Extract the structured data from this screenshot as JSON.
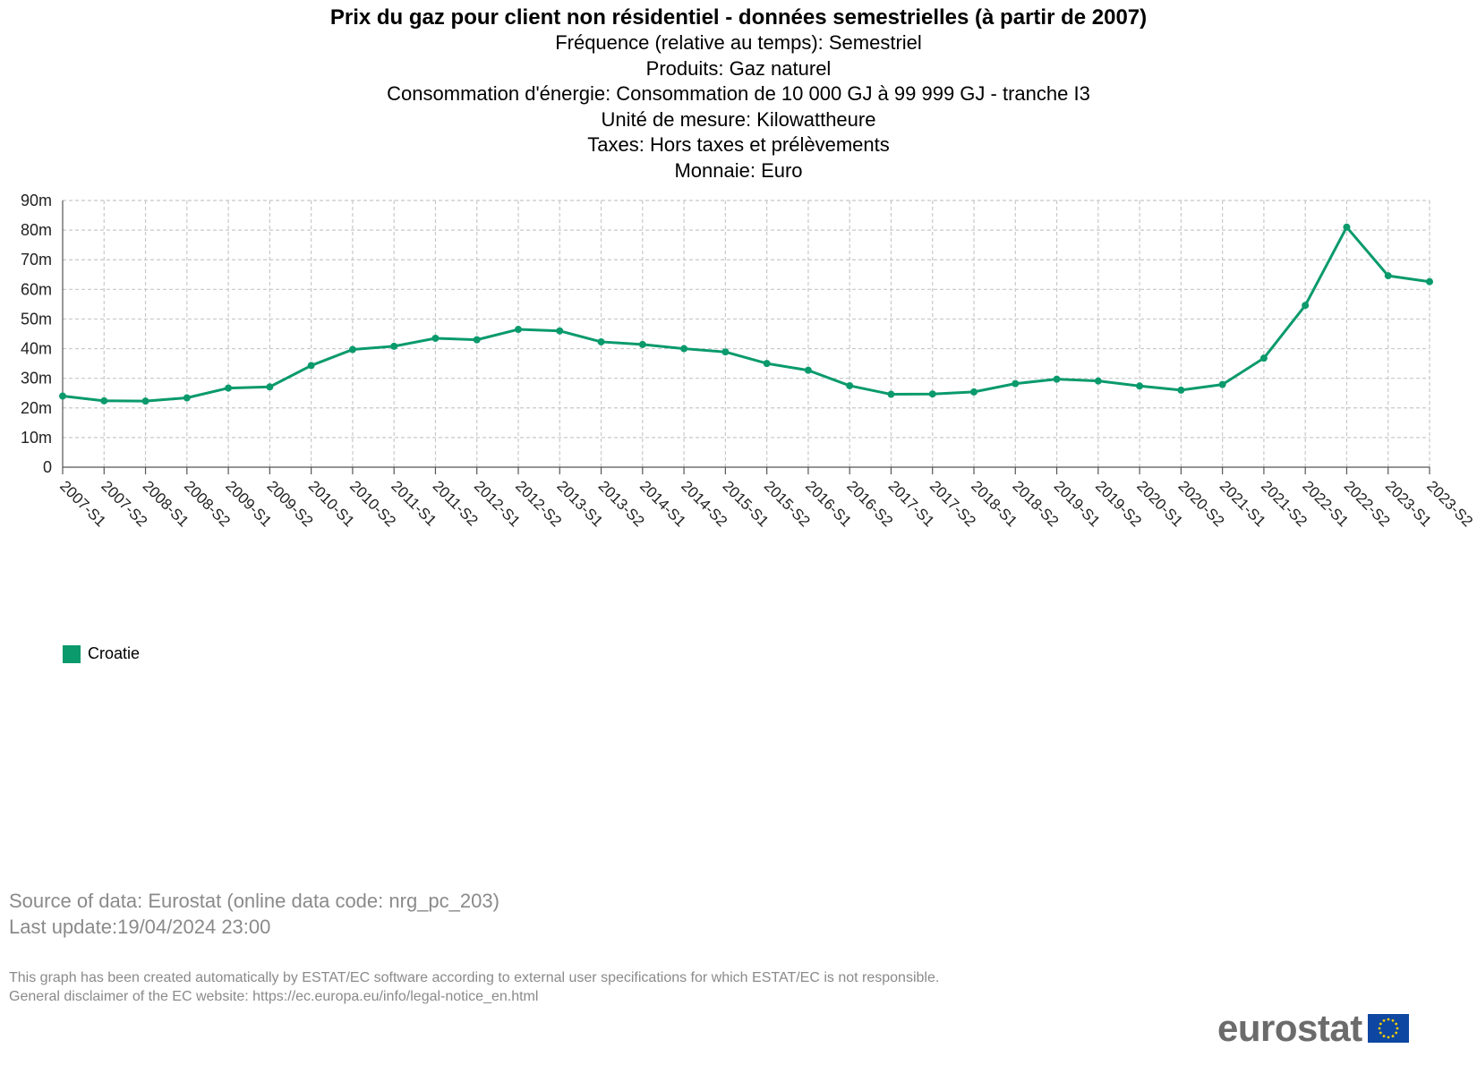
{
  "titles": {
    "title": "Prix du gaz pour client non résidentiel - données semestrielles (à partir de 2007)",
    "lines": [
      "Fréquence (relative au temps): Semestriel",
      "Produits: Gaz naturel",
      "Consommation d'énergie: Consommation de 10 000 GJ à 99 999 GJ - tranche I3",
      "Unité de mesure: Kilowattheure",
      "Taxes: Hors taxes et prélèvements",
      "Monnaie: Euro"
    ]
  },
  "chart_data": {
    "type": "line",
    "title": "Prix du gaz pour client non résidentiel - données semestrielles (à partir de 2007)",
    "xlabel": "",
    "ylabel": "",
    "ylim": [
      0,
      0.09
    ],
    "y_ticks": [
      0,
      0.01,
      0.02,
      0.03,
      0.04,
      0.05,
      0.06,
      0.07,
      0.08,
      0.09
    ],
    "y_tick_labels": [
      "0",
      "10m",
      "20m",
      "30m",
      "40m",
      "50m",
      "60m",
      "70m",
      "80m",
      "90m"
    ],
    "grid": true,
    "legend_position": "bottom-left",
    "categories": [
      "2007-S1",
      "2007-S2",
      "2008-S1",
      "2008-S2",
      "2009-S1",
      "2009-S2",
      "2010-S1",
      "2010-S2",
      "2011-S1",
      "2011-S2",
      "2012-S1",
      "2012-S2",
      "2013-S1",
      "2013-S2",
      "2014-S1",
      "2014-S2",
      "2015-S1",
      "2015-S2",
      "2016-S1",
      "2016-S2",
      "2017-S1",
      "2017-S2",
      "2018-S1",
      "2018-S2",
      "2019-S1",
      "2019-S2",
      "2020-S1",
      "2020-S2",
      "2021-S1",
      "2021-S2",
      "2022-S1",
      "2022-S2",
      "2023-S1",
      "2023-S2"
    ],
    "series": [
      {
        "name": "Croatie",
        "color": "#0a9a6c",
        "values": [
          0.024,
          0.0224,
          0.0223,
          0.0234,
          0.0267,
          0.0271,
          0.0343,
          0.0397,
          0.0408,
          0.0435,
          0.043,
          0.0465,
          0.046,
          0.0423,
          0.0414,
          0.04,
          0.0389,
          0.035,
          0.0327,
          0.0275,
          0.0246,
          0.0247,
          0.0254,
          0.0282,
          0.0297,
          0.0291,
          0.0274,
          0.026,
          0.0279,
          0.0368,
          0.0546,
          0.081,
          0.0646,
          0.0626
        ]
      }
    ]
  },
  "legend": {
    "items": [
      {
        "label": "Croatie",
        "color": "#0a9a6c"
      }
    ]
  },
  "footer": {
    "source": "Source of data: Eurostat (online data code: nrg_pc_203)",
    "last_update": "Last update:19/04/2024 23:00",
    "disclaimer_1": "This graph has been created automatically by ESTAT/EC software according to external user specifications for which ESTAT/EC is not responsible.",
    "disclaimer_2": "General disclaimer of the EC website: https://ec.europa.eu/info/legal-notice_en.html"
  },
  "logo": {
    "text": "eurostat",
    "flag_icon": "eu-flag-icon"
  }
}
